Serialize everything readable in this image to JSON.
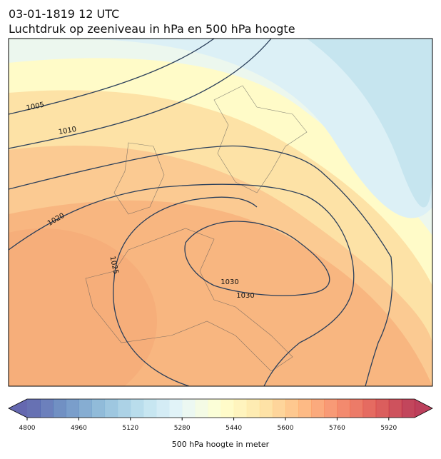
{
  "header": {
    "title": "03-01-1819 12 UTC",
    "subtitle": "Luchtdruk op zeeniveau in hPa en 500 hPa hoogte"
  },
  "isobar_labels": [
    1005,
    1010,
    1020,
    1025,
    1030,
    1030
  ],
  "colorbar": {
    "label": "500 hPa hoogte in meter",
    "clim": [
      4800,
      6000
    ],
    "ticks": [
      4800,
      4960,
      5120,
      5280,
      5440,
      5600,
      5760,
      5920
    ]
  }
}
